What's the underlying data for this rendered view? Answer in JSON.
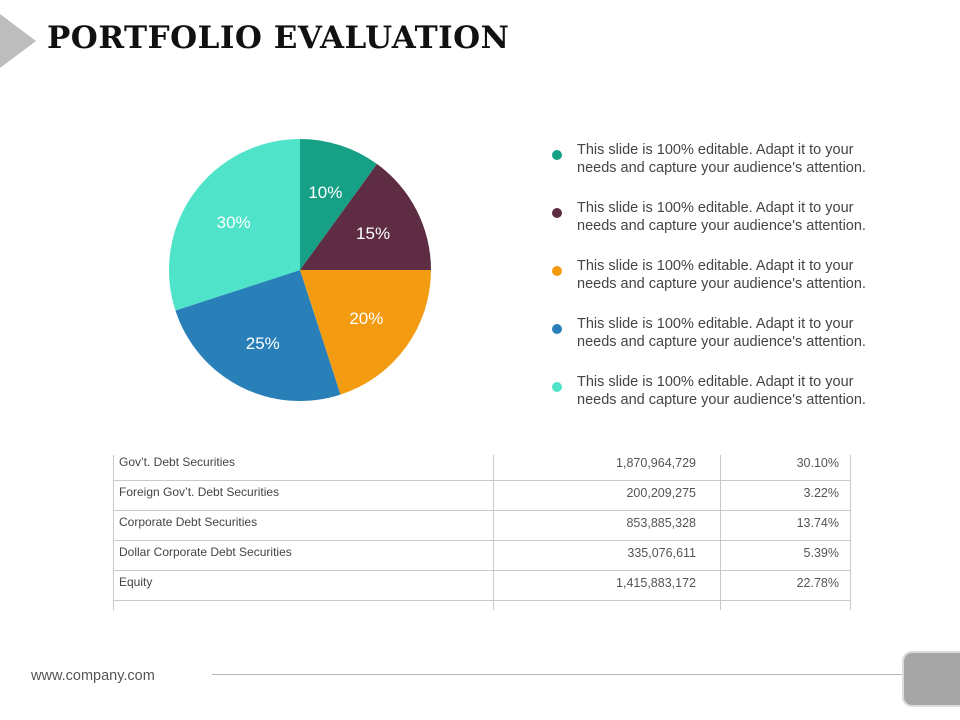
{
  "title": "PORTFOLIO EVALUATION",
  "chart_data": {
    "type": "pie",
    "title": "",
    "start_angle_deg": 0,
    "direction": "clockwise",
    "slices": [
      {
        "label": "10%",
        "value": 10,
        "color": "#16A085"
      },
      {
        "label": "15%",
        "value": 15,
        "color": "#5E2D44"
      },
      {
        "label": "20%",
        "value": 20,
        "color": "#F39C12"
      },
      {
        "label": "25%",
        "value": 25,
        "color": "#2980B9"
      },
      {
        "label": "30%",
        "value": 30,
        "color": "#4FE3C9"
      }
    ]
  },
  "legend": [
    {
      "text": "This slide is 100% editable. Adapt it to your needs and capture your audience's attention.",
      "color": "#16A085"
    },
    {
      "text": "This slide is 100% editable. Adapt it to your needs and capture your audience's attention.",
      "color": "#5E2D44"
    },
    {
      "text": "This slide is 100% editable. Adapt it to your needs and capture your audience's attention.",
      "color": "#F39C12"
    },
    {
      "text": "This slide is 100% editable. Adapt it to your needs and capture your audience's attention.",
      "color": "#2980B9"
    },
    {
      "text": "This slide is 100% editable. Adapt it to your needs and capture your audience's attention.",
      "color": "#4FE3C9"
    }
  ],
  "table": {
    "rows": [
      {
        "name": "Gov’t. Debt Securities",
        "amount": "1,870,964,729",
        "pct": "30.10%"
      },
      {
        "name": "Foreign Gov’t. Debt Securities",
        "amount": "200,209,275",
        "pct": "3.22%"
      },
      {
        "name": "Corporate Debt Securities",
        "amount": "853,885,328",
        "pct": "13.74%"
      },
      {
        "name": "Dollar Corporate Debt Securities",
        "amount": "335,076,611",
        "pct": "5.39%"
      },
      {
        "name": "Equity",
        "amount": "1,415,883,172",
        "pct": "22.78%"
      }
    ]
  },
  "footer": {
    "url": "www.company.com"
  },
  "colors": {
    "title_arrow": "#BDBDBD",
    "corner_square": "#A6A6A6"
  }
}
